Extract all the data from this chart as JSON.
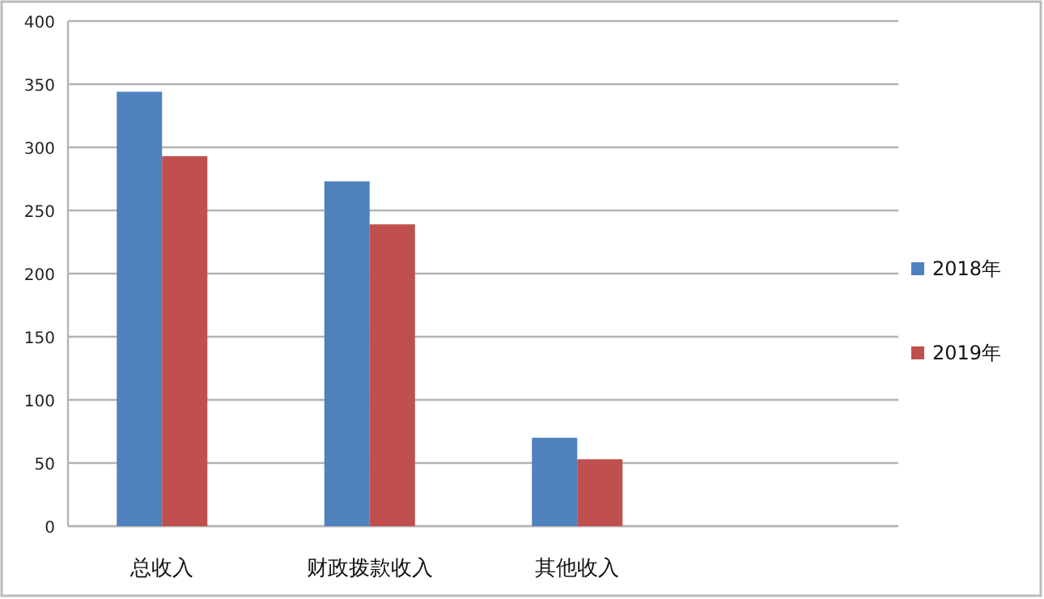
{
  "chart_data": {
    "type": "bar",
    "categories": [
      "总收入",
      "财政拨款收入",
      "其他收入",
      null
    ],
    "series": [
      {
        "name": "2018年",
        "color": "#4f81bd",
        "values": [
          344,
          273,
          70,
          null
        ]
      },
      {
        "name": "2019年",
        "color": "#c0504d",
        "values": [
          293,
          239,
          53,
          null
        ]
      }
    ],
    "ylim": [
      0,
      400
    ],
    "yticks": [
      0,
      50,
      100,
      150,
      200,
      250,
      300,
      350,
      400
    ],
    "grid": "y",
    "legend": "right"
  }
}
